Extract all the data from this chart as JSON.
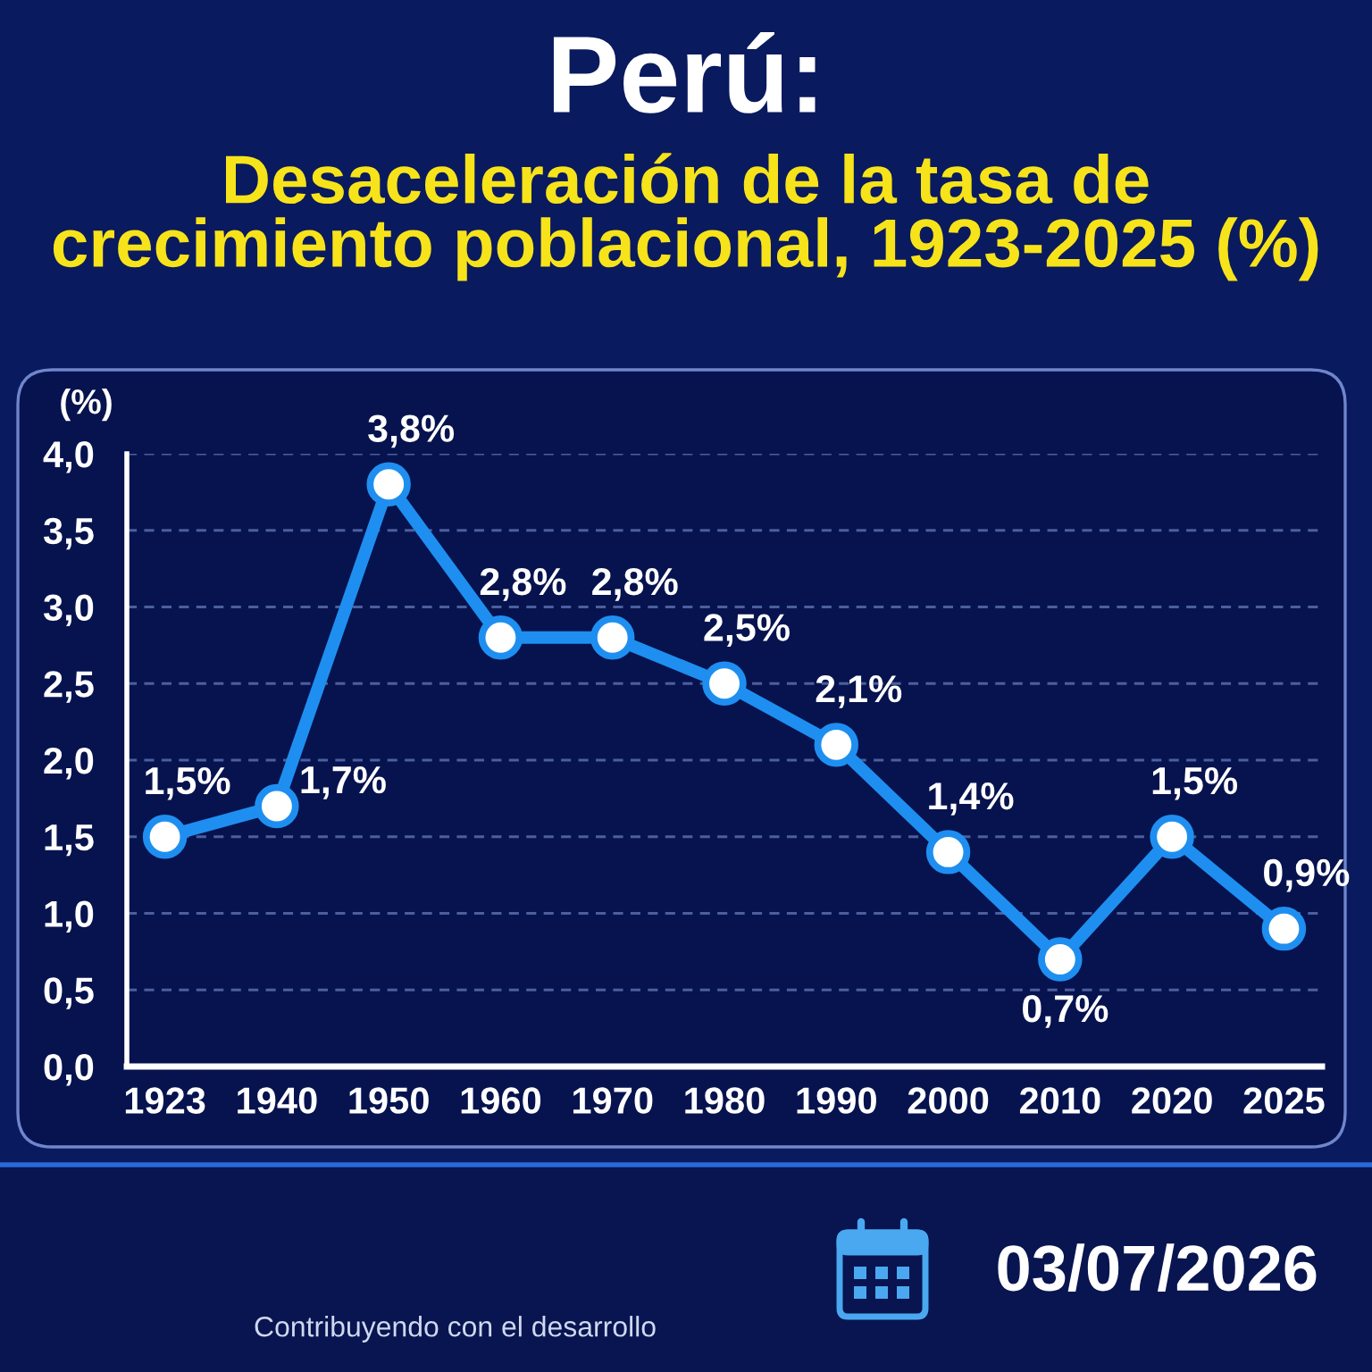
{
  "chart_data": {
    "type": "line",
    "title": "Perú:",
    "subtitle": "Desaceleración de la tasa de\ncrecimiento poblacional, 1923-2025 (%)",
    "ylabel": "(%)",
    "categories": [
      "1923",
      "1940",
      "1950",
      "1960",
      "1970",
      "1980",
      "1990",
      "2000",
      "2010",
      "2020",
      "2025"
    ],
    "values": [
      1.5,
      1.7,
      3.8,
      2.8,
      2.8,
      2.5,
      2.1,
      1.4,
      0.7,
      1.5,
      0.9
    ],
    "value_labels": [
      "1,5%",
      "1,7%",
      "3,8%",
      "2,8%",
      "2,8%",
      "2,5%",
      "2,1%",
      "1,4%",
      "0,7%",
      "1,5%",
      "0,9%"
    ],
    "color": "#1e8ff0",
    "marker": "circle",
    "line_style": "solid",
    "grid": "y",
    "ylim": [
      0,
      4
    ],
    "yticks": [
      {
        "value": 0,
        "label": "0,0"
      },
      {
        "value": 0.5,
        "label": "0,5"
      },
      {
        "value": 1,
        "label": "1,0"
      },
      {
        "value": 1.5,
        "label": "1,5"
      },
      {
        "value": 2,
        "label": "2,0"
      },
      {
        "value": 2.5,
        "label": "2,5"
      },
      {
        "value": 3,
        "label": "3,0"
      },
      {
        "value": 3.5,
        "label": "3,5"
      },
      {
        "value": 4,
        "label": "4,0"
      }
    ],
    "annotations": [
      "Contribuyendo con el desarrollo",
      "03/07/2026"
    ]
  }
}
